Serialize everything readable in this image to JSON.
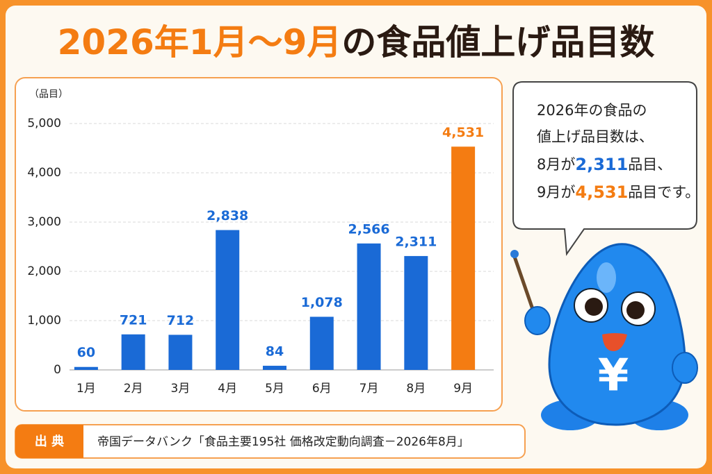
{
  "title": [
    "2026年1月〜9月",
    "の食品値上げ品目数"
  ],
  "chart_data": {
    "type": "bar",
    "y_label": "（品目）",
    "categories": [
      "1月",
      "2月",
      "3月",
      "4月",
      "5月",
      "6月",
      "7月",
      "8月",
      "9月"
    ],
    "values": [
      60,
      721,
      712,
      2838,
      84,
      1078,
      2566,
      2311,
      4531
    ],
    "value_labels": [
      "60",
      "721",
      "712",
      "2,838",
      "84",
      "1,078",
      "2,566",
      "2,311",
      "4,531"
    ],
    "colors": [
      "#1a6ad6",
      "#1a6ad6",
      "#1a6ad6",
      "#1a6ad6",
      "#1a6ad6",
      "#1a6ad6",
      "#1a6ad6",
      "#1a6ad6",
      "#f47c12"
    ],
    "ylim": [
      0,
      5000
    ],
    "yticks": [
      0,
      {
        "value": 1000,
        "label": "1,000"
      },
      {
        "value": 2000,
        "label": "2,000"
      },
      {
        "value": 3000,
        "label": "3,000"
      },
      {
        "value": 4000,
        "label": "4,000"
      },
      {
        "value": 5000,
        "label": "5,000"
      }
    ],
    "grid": true
  },
  "callout": {
    "lines": [
      "2026年の食品の",
      "値上げ品目数は、"
    ],
    "aug": [
      "8月が",
      "品目、"
    ],
    "sep": [
      "9月が",
      "品目です。"
    ]
  },
  "source": {
    "label": "出 典",
    "text": "帝国データバンク「食品主要195社 価格改定動向調査－2026年8月」"
  },
  "mascot_symbol": "¥"
}
